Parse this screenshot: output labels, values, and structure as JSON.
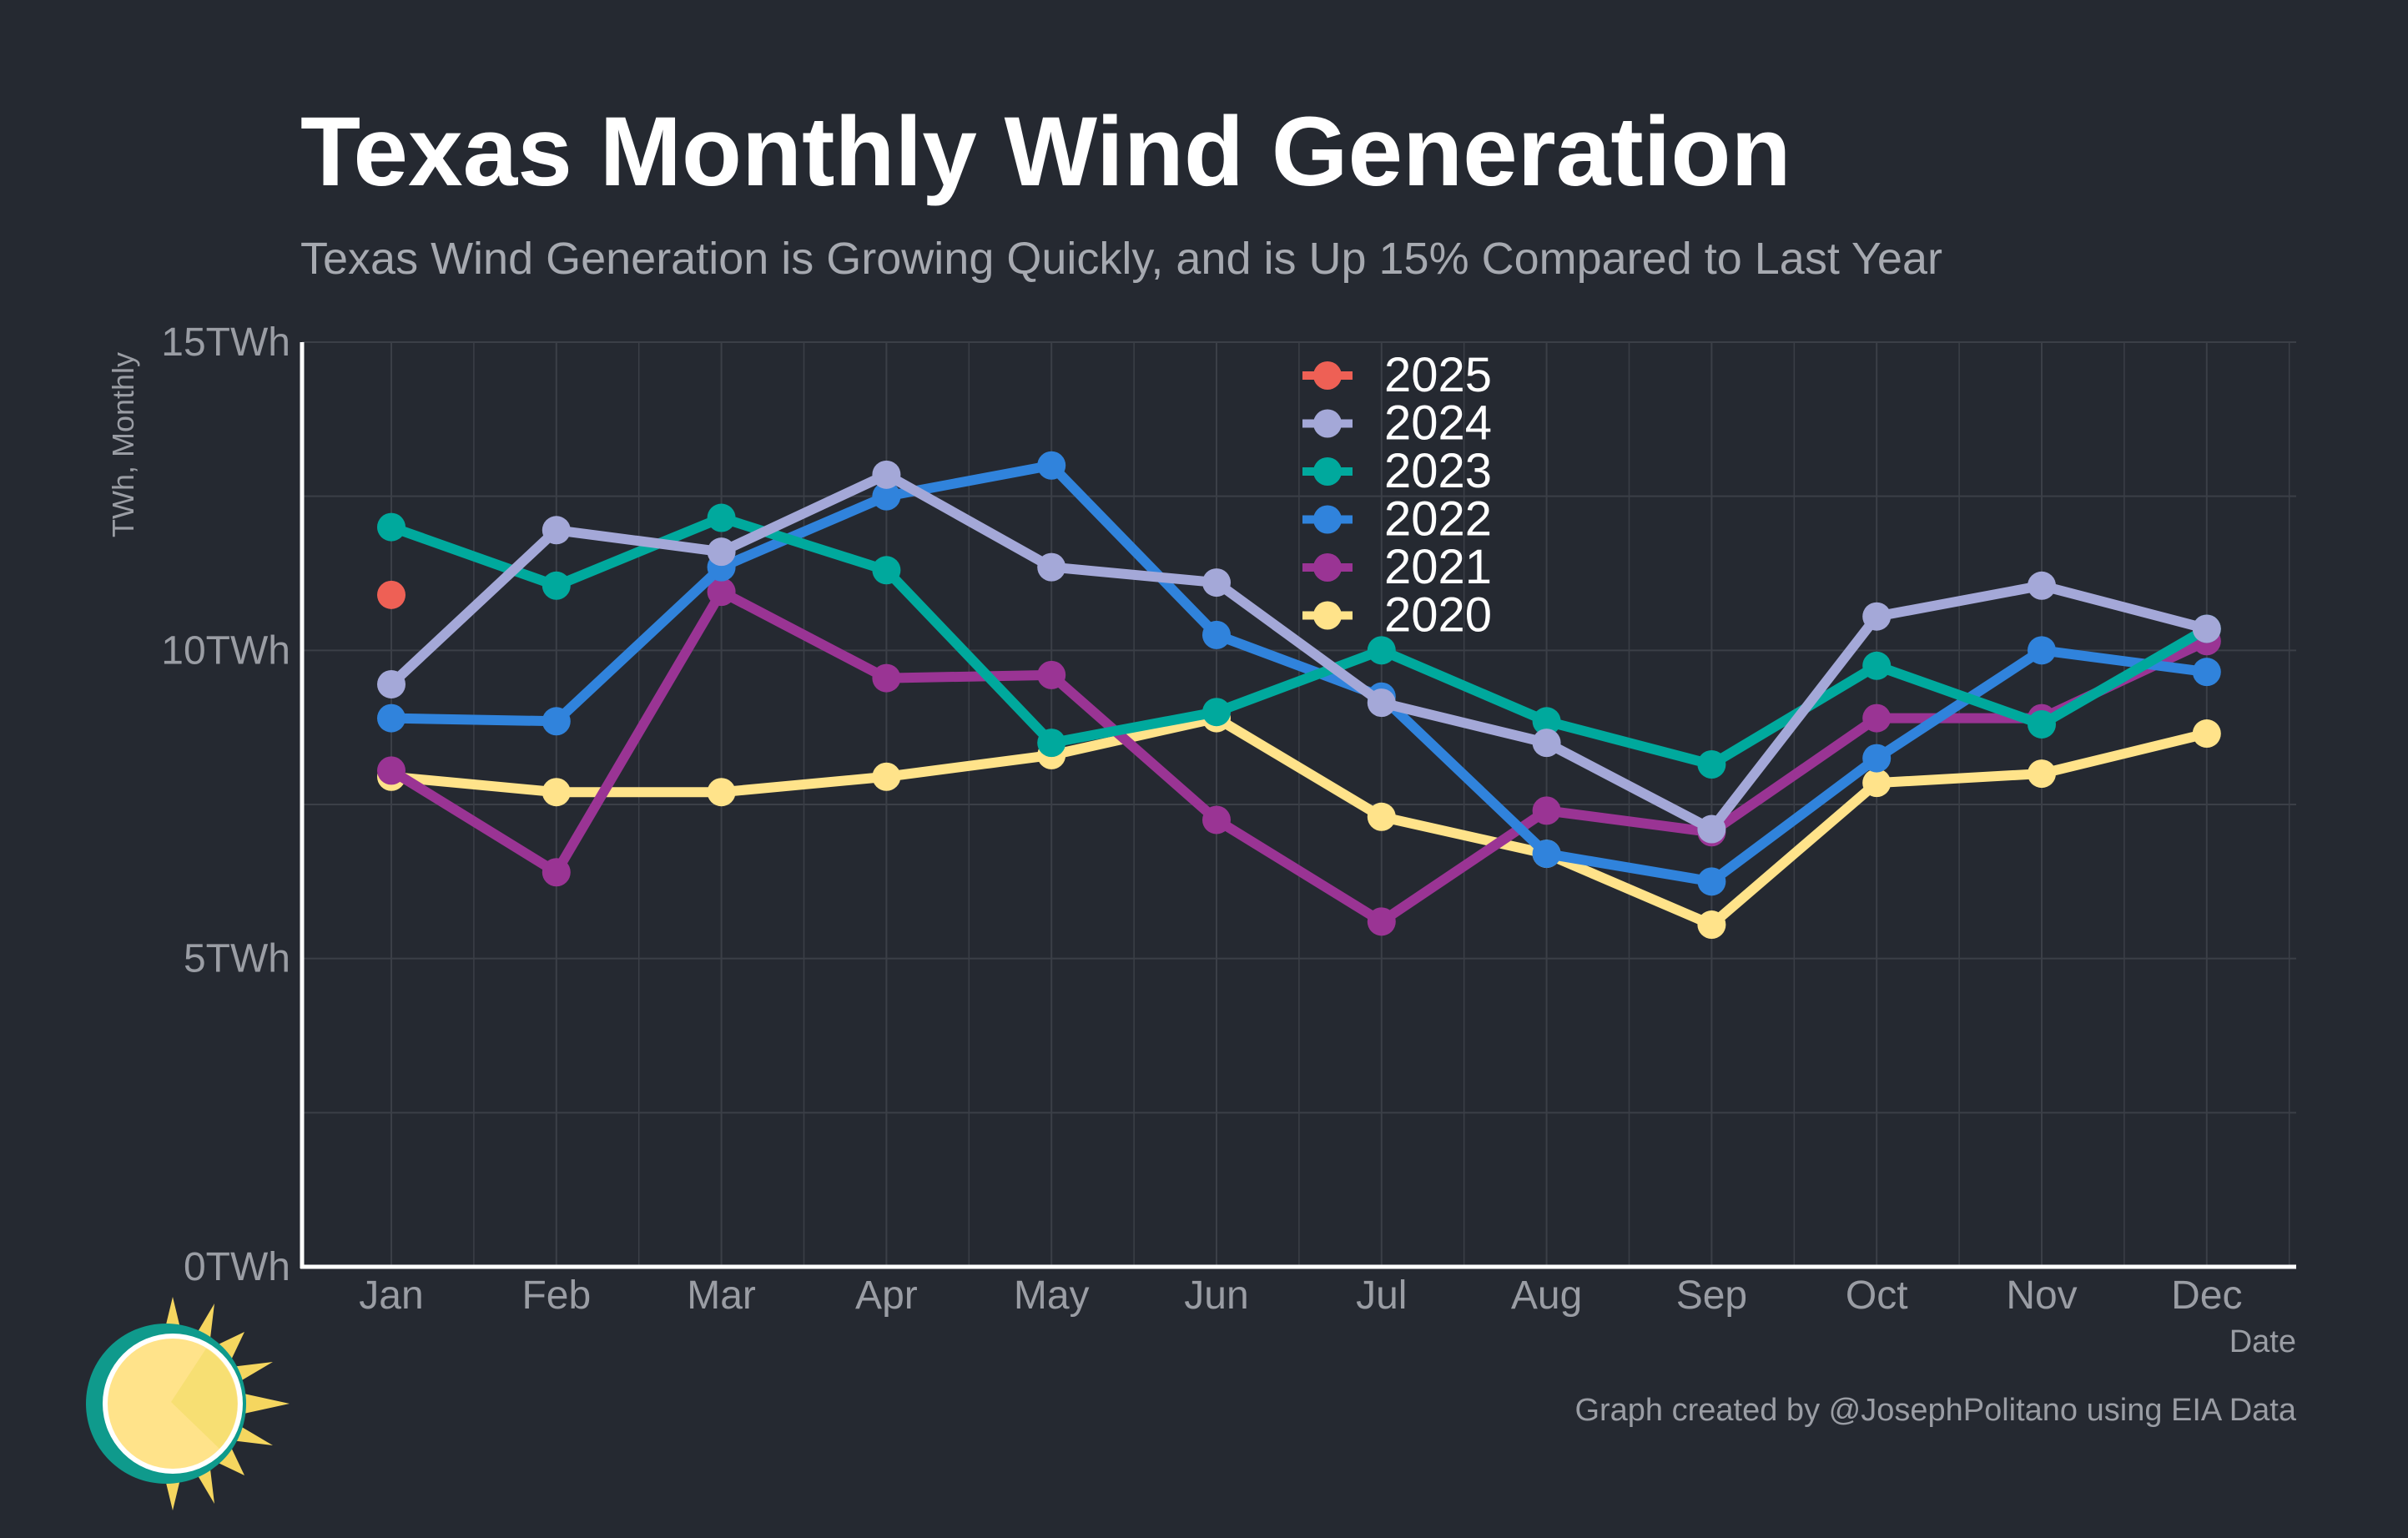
{
  "chart_data": {
    "type": "line",
    "title": "Texas Monthly Wind Generation",
    "subtitle": "Texas Wind Generation is Growing Quickly, and is Up 15% Compared to Last Year",
    "xlabel": "Date",
    "ylabel": "TWh, Monthly",
    "categories": [
      "Jan",
      "Feb",
      "Mar",
      "Apr",
      "May",
      "Jun",
      "Jul",
      "Aug",
      "Sep",
      "Oct",
      "Nov",
      "Dec"
    ],
    "ylim": [
      0,
      15
    ],
    "yticks": [
      0,
      5,
      10,
      15
    ],
    "ytick_labels": [
      "0TWh",
      "5TWh",
      "10TWh",
      "15TWh"
    ],
    "grid": true,
    "legend_position": "top-center",
    "series": [
      {
        "name": "2025",
        "color": "#ee6055",
        "values": [
          10.9,
          null,
          null,
          null,
          null,
          null,
          null,
          null,
          null,
          null,
          null,
          null
        ]
      },
      {
        "name": "2024",
        "color": "#a4a8d8",
        "values": [
          9.45,
          11.95,
          11.6,
          12.85,
          11.35,
          11.1,
          9.15,
          8.5,
          7.1,
          10.55,
          11.05,
          10.35
        ]
      },
      {
        "name": "2023",
        "color": "#00a99d",
        "values": [
          12.0,
          11.05,
          12.15,
          11.3,
          8.5,
          9.0,
          10.0,
          8.85,
          8.15,
          9.75,
          8.8,
          10.35
        ]
      },
      {
        "name": "2022",
        "color": "#3083dc",
        "values": [
          8.9,
          8.85,
          11.35,
          12.5,
          13.0,
          10.25,
          9.25,
          6.7,
          6.25,
          8.25,
          10.0,
          9.65
        ]
      },
      {
        "name": "2021",
        "color": "#9a3494",
        "values": [
          8.05,
          6.4,
          10.95,
          9.55,
          9.6,
          7.25,
          5.6,
          7.4,
          7.05,
          8.9,
          8.9,
          10.15
        ]
      },
      {
        "name": "2020",
        "color": "#ffe38a",
        "values": [
          7.95,
          7.7,
          7.7,
          7.95,
          8.3,
          8.9,
          7.3,
          6.7,
          5.55,
          7.85,
          8.0,
          8.65
        ]
      }
    ],
    "draw_order": [
      "2020",
      "2021",
      "2022",
      "2023",
      "2024",
      "2025"
    ]
  },
  "credit": "Graph created by @JosephPolitano using EIA Data",
  "colors": {
    "background": "#252931",
    "grid": "#3b3f47",
    "axis": "#ffffff",
    "logo_teal": "#0f9a8c",
    "logo_yellow": "#ffe38a",
    "logo_rays": "#f5d65f"
  },
  "icon": "sun-logo-icon"
}
